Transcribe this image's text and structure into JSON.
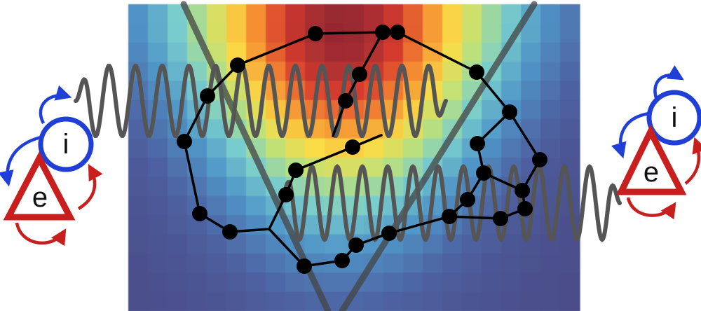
{
  "colors": {
    "background": "#ffffff",
    "excitatory": "#c81e1e",
    "inhibitory": "#1f3fd6",
    "wave": "#555555",
    "network": "#000000",
    "cone": "#444444",
    "heatmap_low": "#4a4a8a",
    "heatmap_high": "#c0202a"
  },
  "left_motif": {
    "inhibitory_label": "i",
    "excitatory_label": "e"
  },
  "right_motif": {
    "inhibitory_label": "i",
    "excitatory_label": "e"
  },
  "icons": [
    "excitatory-triangle-icon",
    "inhibitory-circle-icon",
    "recurrent-arrow-icon"
  ]
}
